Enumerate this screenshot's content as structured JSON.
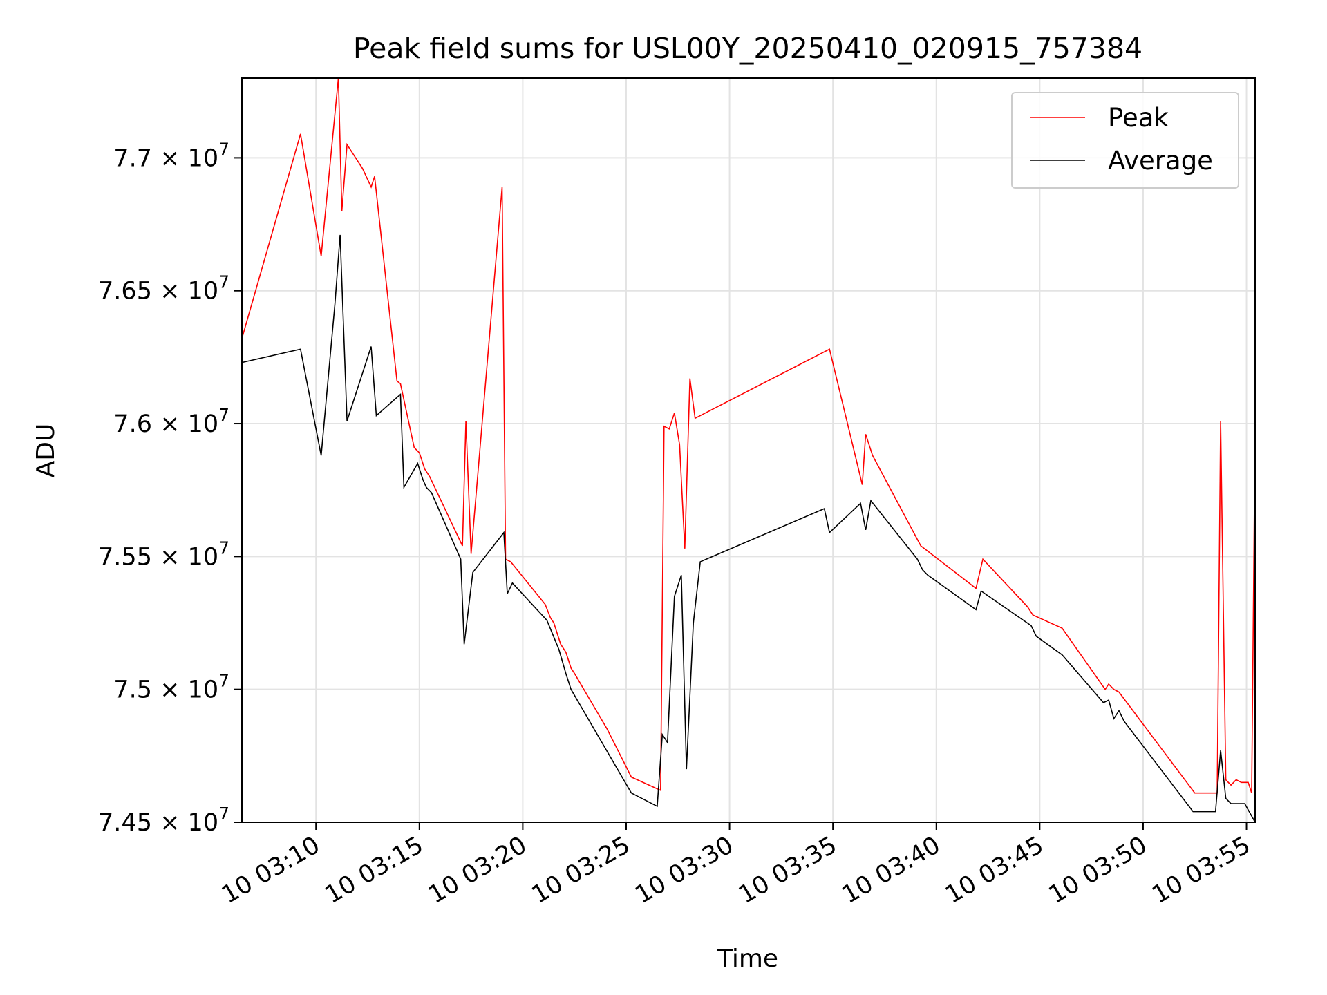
{
  "chart_data": {
    "type": "line",
    "title": "Peak field sums for USL00Y_20250410_020915_757384",
    "xlabel": "Time",
    "ylabel": "ADU",
    "x_type": "time",
    "xlim": [
      "03:06:25",
      "03:55:25"
    ],
    "ylim": [
      74500000,
      77300000
    ],
    "grid": true,
    "legend": "top-right",
    "x_ticks": [
      {
        "label": "10 03:10",
        "value": "03:10"
      },
      {
        "label": "10 03:15",
        "value": "03:15"
      },
      {
        "label": "10 03:20",
        "value": "03:20"
      },
      {
        "label": "10 03:25",
        "value": "03:25"
      },
      {
        "label": "10 03:30",
        "value": "03:30"
      },
      {
        "label": "10 03:35",
        "value": "03:35"
      },
      {
        "label": "10 03:40",
        "value": "03:40"
      },
      {
        "label": "10 03:45",
        "value": "03:45"
      },
      {
        "label": "10 03:50",
        "value": "03:50"
      },
      {
        "label": "10 03:55",
        "value": "03:55"
      }
    ],
    "y_ticks": [
      {
        "mantissa": "7.45",
        "exponent": "7",
        "value": 74500000
      },
      {
        "mantissa": "7.5",
        "exponent": "7",
        "value": 75000000
      },
      {
        "mantissa": "7.55",
        "exponent": "7",
        "value": 75500000
      },
      {
        "mantissa": "7.6",
        "exponent": "7",
        "value": 76000000
      },
      {
        "mantissa": "7.65",
        "exponent": "7",
        "value": 76500000
      },
      {
        "mantissa": "7.7",
        "exponent": "7",
        "value": 77000000
      }
    ],
    "series": [
      {
        "name": "Peak",
        "color": "#ff0000",
        "points": [
          [
            "03:06:25",
            76320000
          ],
          [
            "03:09:15",
            77090000
          ],
          [
            "03:10:15",
            76630000
          ],
          [
            "03:11:05",
            77300000
          ],
          [
            "03:11:15",
            76800000
          ],
          [
            "03:11:30",
            77050000
          ],
          [
            "03:12:15",
            76960000
          ],
          [
            "03:12:40",
            76890000
          ],
          [
            "03:12:50",
            76930000
          ],
          [
            "03:13:55",
            76160000
          ],
          [
            "03:14:05",
            76150000
          ],
          [
            "03:14:45",
            75910000
          ],
          [
            "03:15:00",
            75890000
          ],
          [
            "03:15:15",
            75830000
          ],
          [
            "03:15:30",
            75800000
          ],
          [
            "03:17:05",
            75540000
          ],
          [
            "03:17:15",
            76010000
          ],
          [
            "03:17:30",
            75510000
          ],
          [
            "03:19:00",
            76890000
          ],
          [
            "03:19:10",
            75490000
          ],
          [
            "03:19:25",
            75480000
          ],
          [
            "03:21:05",
            75320000
          ],
          [
            "03:21:20",
            75270000
          ],
          [
            "03:21:30",
            75250000
          ],
          [
            "03:21:50",
            75170000
          ],
          [
            "03:22:05",
            75140000
          ],
          [
            "03:22:20",
            75080000
          ],
          [
            "03:22:30",
            75060000
          ],
          [
            "03:24:05",
            74850000
          ],
          [
            "03:25:15",
            74670000
          ],
          [
            "03:26:40",
            74620000
          ],
          [
            "03:26:50",
            75990000
          ],
          [
            "03:27:05",
            75980000
          ],
          [
            "03:27:20",
            76040000
          ],
          [
            "03:27:35",
            75920000
          ],
          [
            "03:27:50",
            75530000
          ],
          [
            "03:28:05",
            76170000
          ],
          [
            "03:28:20",
            76020000
          ],
          [
            "03:34:50",
            76280000
          ],
          [
            "03:36:25",
            75770000
          ],
          [
            "03:36:35",
            75960000
          ],
          [
            "03:36:55",
            75880000
          ],
          [
            "03:39:15",
            75540000
          ],
          [
            "03:39:25",
            75530000
          ],
          [
            "03:41:55",
            75380000
          ],
          [
            "03:42:15",
            75490000
          ],
          [
            "03:44:25",
            75310000
          ],
          [
            "03:44:40",
            75280000
          ],
          [
            "03:46:05",
            75230000
          ],
          [
            "03:48:10",
            75000000
          ],
          [
            "03:48:20",
            75020000
          ],
          [
            "03:48:35",
            75000000
          ],
          [
            "03:48:50",
            74990000
          ],
          [
            "03:52:30",
            74610000
          ],
          [
            "03:53:35",
            74610000
          ],
          [
            "03:53:45",
            76010000
          ],
          [
            "03:54:00",
            74660000
          ],
          [
            "03:54:15",
            74640000
          ],
          [
            "03:54:30",
            74660000
          ],
          [
            "03:54:45",
            74650000
          ],
          [
            "03:55:05",
            74650000
          ],
          [
            "03:55:15",
            74610000
          ],
          [
            "03:55:25",
            75990000
          ]
        ]
      },
      {
        "name": "Average",
        "color": "#000000",
        "points": [
          [
            "03:06:25",
            76230000
          ],
          [
            "03:09:15",
            76280000
          ],
          [
            "03:10:15",
            75880000
          ],
          [
            "03:10:55",
            76450000
          ],
          [
            "03:11:10",
            76710000
          ],
          [
            "03:11:30",
            76010000
          ],
          [
            "03:12:40",
            76290000
          ],
          [
            "03:12:55",
            76030000
          ],
          [
            "03:14:05",
            76110000
          ],
          [
            "03:14:15",
            75760000
          ],
          [
            "03:14:55",
            75850000
          ],
          [
            "03:15:10",
            75790000
          ],
          [
            "03:15:20",
            75760000
          ],
          [
            "03:15:35",
            75740000
          ],
          [
            "03:17:00",
            75490000
          ],
          [
            "03:17:10",
            75170000
          ],
          [
            "03:17:35",
            75440000
          ],
          [
            "03:19:05",
            75590000
          ],
          [
            "03:19:15",
            75360000
          ],
          [
            "03:19:30",
            75400000
          ],
          [
            "03:21:10",
            75260000
          ],
          [
            "03:21:45",
            75150000
          ],
          [
            "03:22:05",
            75060000
          ],
          [
            "03:22:20",
            75000000
          ],
          [
            "03:25:15",
            74610000
          ],
          [
            "03:26:30",
            74560000
          ],
          [
            "03:26:45",
            74830000
          ],
          [
            "03:27:00",
            74800000
          ],
          [
            "03:27:20",
            75350000
          ],
          [
            "03:27:40",
            75430000
          ],
          [
            "03:27:55",
            74700000
          ],
          [
            "03:28:15",
            75250000
          ],
          [
            "03:28:35",
            75480000
          ],
          [
            "03:34:35",
            75680000
          ],
          [
            "03:34:50",
            75590000
          ],
          [
            "03:36:20",
            75700000
          ],
          [
            "03:36:35",
            75600000
          ],
          [
            "03:36:50",
            75710000
          ],
          [
            "03:39:05",
            75490000
          ],
          [
            "03:39:20",
            75450000
          ],
          [
            "03:39:35",
            75430000
          ],
          [
            "03:41:55",
            75300000
          ],
          [
            "03:42:10",
            75370000
          ],
          [
            "03:44:35",
            75240000
          ],
          [
            "03:44:50",
            75200000
          ],
          [
            "03:46:05",
            75130000
          ],
          [
            "03:48:05",
            74950000
          ],
          [
            "03:48:20",
            74960000
          ],
          [
            "03:48:35",
            74890000
          ],
          [
            "03:48:50",
            74920000
          ],
          [
            "03:49:05",
            74880000
          ],
          [
            "03:52:25",
            74540000
          ],
          [
            "03:53:30",
            74540000
          ],
          [
            "03:53:45",
            74770000
          ],
          [
            "03:54:00",
            74590000
          ],
          [
            "03:54:15",
            74570000
          ],
          [
            "03:54:55",
            74570000
          ],
          [
            "03:55:25",
            74500000
          ]
        ]
      }
    ]
  }
}
